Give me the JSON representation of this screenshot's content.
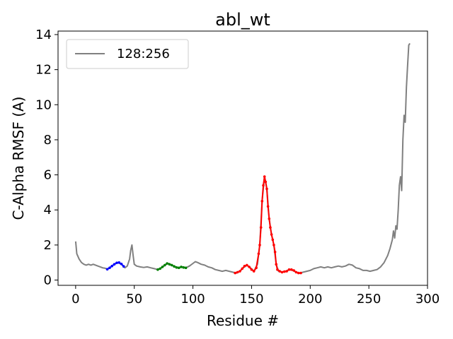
{
  "chart_data": {
    "type": "line",
    "title": "abl_wt",
    "xlabel": "Residue #",
    "ylabel": "C-Alpha RMSF (A)",
    "xlim": [
      -15,
      300
    ],
    "ylim": [
      -0.3,
      14.2
    ],
    "xticks": [
      0,
      50,
      100,
      150,
      200,
      250,
      300
    ],
    "yticks": [
      0,
      2,
      4,
      6,
      8,
      10,
      12,
      14
    ],
    "grid": false,
    "legend": {
      "placement": "top-left",
      "entries": [
        "128:256"
      ]
    },
    "series": [
      {
        "name": "128:256",
        "color": "#808080",
        "marker": "none",
        "points": [
          [
            0,
            2.2
          ],
          [
            1,
            1.5
          ],
          [
            3,
            1.2
          ],
          [
            5,
            1.0
          ],
          [
            7,
            0.9
          ],
          [
            9,
            0.85
          ],
          [
            11,
            0.9
          ],
          [
            13,
            0.85
          ],
          [
            15,
            0.9
          ],
          [
            17,
            0.85
          ],
          [
            19,
            0.8
          ],
          [
            21,
            0.75
          ],
          [
            23,
            0.7
          ],
          [
            25,
            0.68
          ],
          [
            27,
            0.62
          ],
          [
            30,
            0.75
          ],
          [
            33,
            0.9
          ],
          [
            36,
            1.0
          ],
          [
            39,
            0.9
          ],
          [
            42,
            0.7
          ],
          [
            44,
            0.8
          ],
          [
            46,
            1.2
          ],
          [
            47,
            1.7
          ],
          [
            48,
            2.0
          ],
          [
            49,
            1.4
          ],
          [
            50,
            0.9
          ],
          [
            52,
            0.8
          ],
          [
            55,
            0.75
          ],
          [
            58,
            0.72
          ],
          [
            61,
            0.75
          ],
          [
            64,
            0.7
          ],
          [
            67,
            0.65
          ],
          [
            70,
            0.6
          ],
          [
            73,
            0.7
          ],
          [
            76,
            0.85
          ],
          [
            79,
            0.95
          ],
          [
            82,
            0.85
          ],
          [
            85,
            0.75
          ],
          [
            88,
            0.7
          ],
          [
            91,
            0.75
          ],
          [
            94,
            0.7
          ],
          [
            97,
            0.8
          ],
          [
            100,
            0.95
          ],
          [
            102,
            1.05
          ],
          [
            104,
            1.0
          ],
          [
            107,
            0.9
          ],
          [
            110,
            0.85
          ],
          [
            113,
            0.75
          ],
          [
            116,
            0.7
          ],
          [
            119,
            0.6
          ],
          [
            122,
            0.55
          ],
          [
            125,
            0.5
          ],
          [
            128,
            0.55
          ],
          [
            131,
            0.5
          ],
          [
            134,
            0.45
          ],
          [
            137,
            0.4
          ],
          [
            140,
            0.5
          ],
          [
            143,
            0.7
          ],
          [
            146,
            0.85
          ],
          [
            149,
            0.7
          ],
          [
            152,
            0.5
          ],
          [
            155,
            0.9
          ],
          [
            157,
            2.0
          ],
          [
            159,
            4.5
          ],
          [
            161,
            5.9
          ],
          [
            163,
            5.2
          ],
          [
            165,
            3.5
          ],
          [
            167,
            2.6
          ],
          [
            169,
            2.0
          ],
          [
            171,
            0.9
          ],
          [
            173,
            0.5
          ],
          [
            176,
            0.45
          ],
          [
            179,
            0.5
          ],
          [
            182,
            0.6
          ],
          [
            185,
            0.55
          ],
          [
            188,
            0.45
          ],
          [
            191,
            0.4
          ],
          [
            194,
            0.45
          ],
          [
            197,
            0.5
          ],
          [
            200,
            0.55
          ],
          [
            203,
            0.65
          ],
          [
            206,
            0.7
          ],
          [
            209,
            0.75
          ],
          [
            212,
            0.7
          ],
          [
            215,
            0.75
          ],
          [
            218,
            0.7
          ],
          [
            221,
            0.75
          ],
          [
            224,
            0.8
          ],
          [
            227,
            0.75
          ],
          [
            230,
            0.8
          ],
          [
            233,
            0.9
          ],
          [
            236,
            0.85
          ],
          [
            239,
            0.7
          ],
          [
            242,
            0.65
          ],
          [
            245,
            0.55
          ],
          [
            248,
            0.55
          ],
          [
            251,
            0.5
          ],
          [
            254,
            0.55
          ],
          [
            257,
            0.6
          ],
          [
            260,
            0.75
          ],
          [
            263,
            1.0
          ],
          [
            266,
            1.4
          ],
          [
            268,
            1.8
          ],
          [
            270,
            2.3
          ],
          [
            271,
            2.8
          ],
          [
            272,
            2.4
          ],
          [
            273,
            3.1
          ],
          [
            274,
            2.9
          ],
          [
            275,
            4.0
          ],
          [
            276,
            5.4
          ],
          [
            277,
            5.9
          ],
          [
            278,
            5.1
          ],
          [
            279,
            8.0
          ],
          [
            280,
            9.4
          ],
          [
            281,
            9.0
          ],
          [
            282,
            11.0
          ],
          [
            283,
            12.2
          ],
          [
            284,
            13.4
          ],
          [
            285,
            13.5
          ]
        ]
      },
      {
        "name": "",
        "color": "#0000ff",
        "marker": "dot",
        "points": [
          [
            27,
            0.62
          ],
          [
            29,
            0.7
          ],
          [
            31,
            0.8
          ],
          [
            33,
            0.9
          ],
          [
            35,
            0.98
          ],
          [
            37,
            1.0
          ],
          [
            39,
            0.92
          ],
          [
            41,
            0.78
          ]
        ]
      },
      {
        "name": "",
        "color": "#008000",
        "marker": "dot",
        "points": [
          [
            70,
            0.6
          ],
          [
            72,
            0.65
          ],
          [
            74,
            0.75
          ],
          [
            76,
            0.85
          ],
          [
            78,
            0.95
          ],
          [
            80,
            0.9
          ],
          [
            82,
            0.85
          ],
          [
            84,
            0.78
          ],
          [
            86,
            0.72
          ],
          [
            88,
            0.7
          ],
          [
            90,
            0.75
          ],
          [
            92,
            0.72
          ],
          [
            94,
            0.7
          ]
        ]
      },
      {
        "name": "",
        "color": "#ff0000",
        "marker": "dot",
        "points": [
          [
            136,
            0.4
          ],
          [
            138,
            0.45
          ],
          [
            140,
            0.5
          ],
          [
            142,
            0.65
          ],
          [
            144,
            0.8
          ],
          [
            146,
            0.85
          ],
          [
            148,
            0.75
          ],
          [
            150,
            0.6
          ],
          [
            152,
            0.5
          ],
          [
            154,
            0.7
          ],
          [
            156,
            1.5
          ],
          [
            157,
            2.0
          ],
          [
            158,
            3.0
          ],
          [
            159,
            4.5
          ],
          [
            160,
            5.4
          ],
          [
            161,
            5.9
          ],
          [
            162,
            5.6
          ],
          [
            163,
            5.2
          ],
          [
            164,
            4.2
          ],
          [
            165,
            3.5
          ],
          [
            166,
            3.0
          ],
          [
            167,
            2.6
          ],
          [
            168,
            2.3
          ],
          [
            169,
            2.0
          ],
          [
            170,
            1.6
          ],
          [
            171,
            0.9
          ],
          [
            172,
            0.6
          ],
          [
            174,
            0.5
          ],
          [
            176,
            0.45
          ],
          [
            178,
            0.48
          ],
          [
            180,
            0.5
          ],
          [
            182,
            0.6
          ],
          [
            184,
            0.6
          ],
          [
            186,
            0.55
          ],
          [
            188,
            0.45
          ],
          [
            190,
            0.4
          ],
          [
            192,
            0.4
          ]
        ]
      }
    ]
  }
}
